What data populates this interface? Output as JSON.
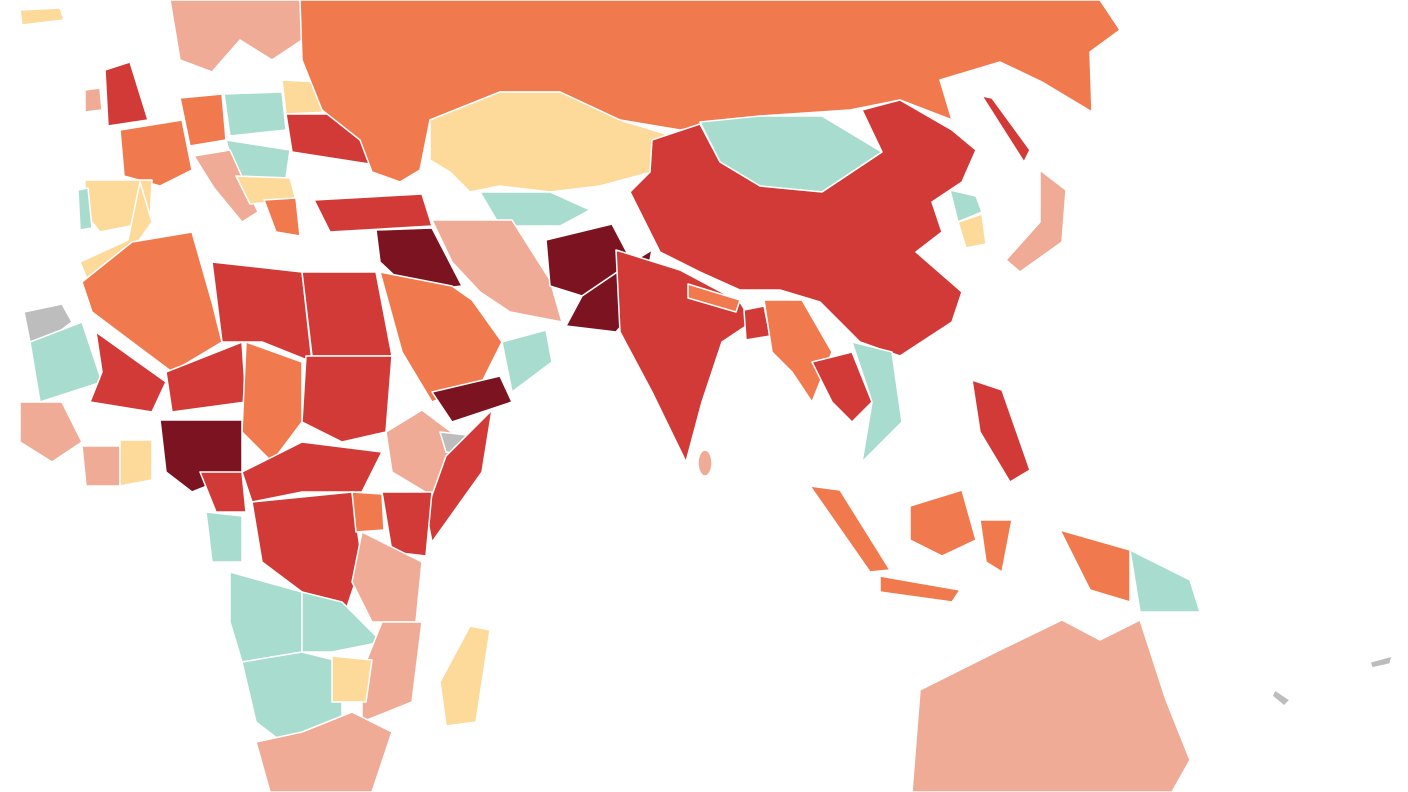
{
  "map": {
    "colors": [
      "#7b1420",
      "#d13a36",
      "#f07a4e",
      "#f0ab96",
      "#fdd99a",
      "#a8dccf",
      "#bdbdbd"
    ]
  }
}
